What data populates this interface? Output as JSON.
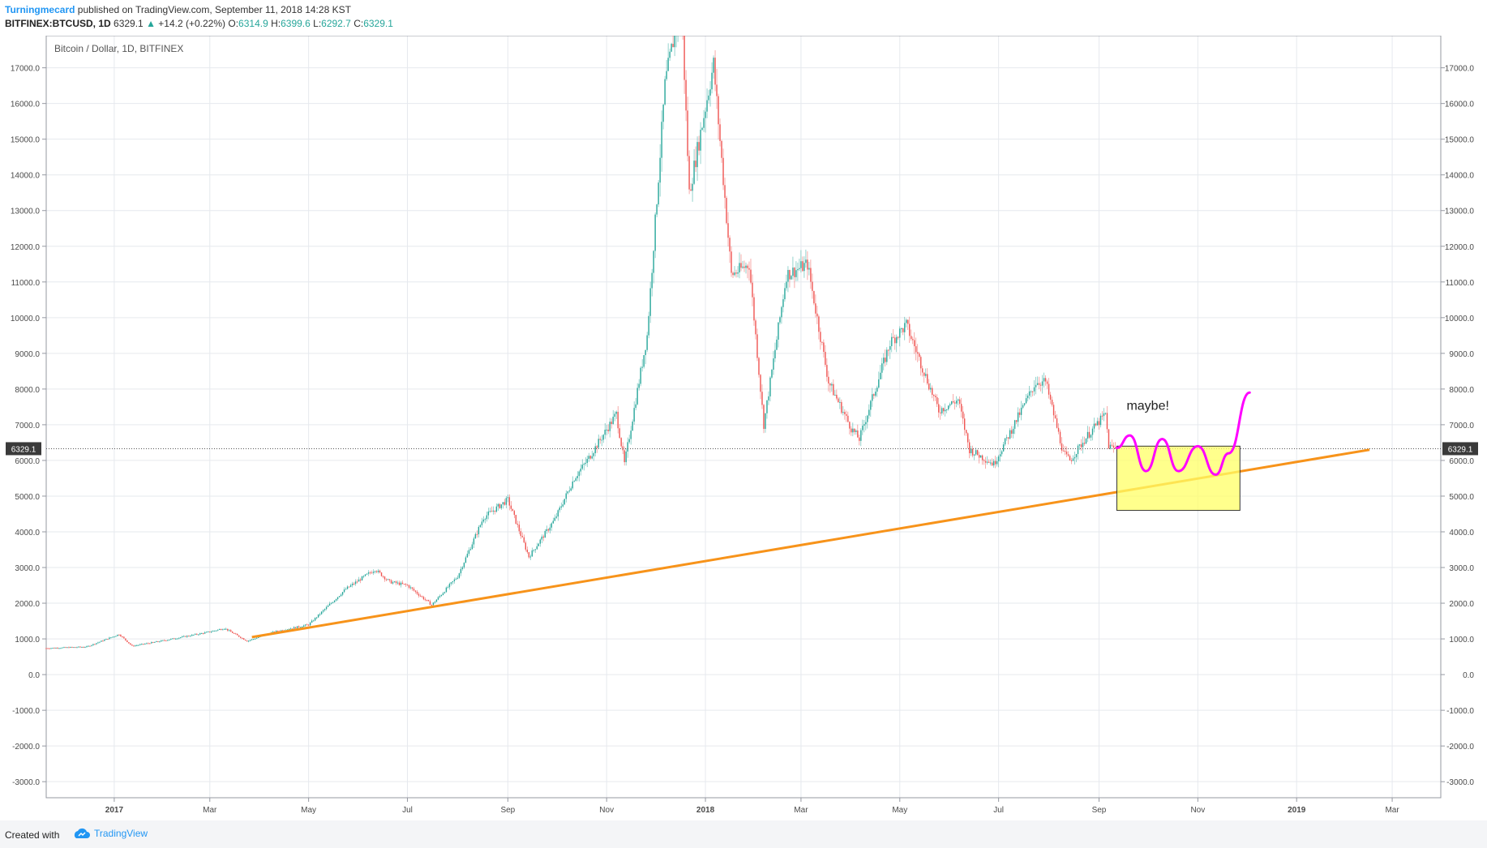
{
  "header": {
    "author": "Turningmecard",
    "published": " published on TradingView.com, September 11, 2018 14:28 KST",
    "symbol": "BITFINEX:BTCUSD, 1D",
    "last": "6329.1",
    "change": "+14.2 (+0.22%)",
    "o_label": "O:",
    "o_value": "6314.9",
    "h_label": "H:",
    "h_value": "6399.6",
    "l_label": "L:",
    "l_value": "6292.7",
    "c_label": "C:",
    "c_value": "6329.1"
  },
  "footer": {
    "created": "Created with",
    "brand": "TradingView"
  },
  "colors": {
    "up": "#26a69a",
    "down": "#ef5350",
    "trendline": "#f7931a",
    "box_fill": "#ffff66",
    "projection": "#ff00ff",
    "grid": "#e6e9ee"
  },
  "chart_data": {
    "type": "candlestick",
    "title": "Bitcoin / Dollar, 1D, BITFINEX",
    "ylim": [
      -3450,
      17900
    ],
    "y_ticks": [
      -3000,
      -2000,
      -1000,
      0,
      1000,
      2000,
      3000,
      4000,
      5000,
      6000,
      7000,
      8000,
      9000,
      10000,
      11000,
      12000,
      13000,
      14000,
      15000,
      16000,
      17000
    ],
    "y_tick_labels": [
      "-3000.0",
      "-2000.0",
      "-1000.0",
      "0.0",
      "1000.0",
      "2000.0",
      "3000.0",
      "4000.0",
      "5000.0",
      "6000.0",
      "7000.0",
      "8000.0",
      "9000.0",
      "10000.0",
      "11000.0",
      "12000.0",
      "13000.0",
      "14000.0",
      "15000.0",
      "16000.0",
      "17000.0"
    ],
    "x_range": [
      "2016-11-20",
      "2019-03-31"
    ],
    "x_ticks": [
      {
        "date": "2017-01-01",
        "label": "2017",
        "bold": true
      },
      {
        "date": "2017-03-01",
        "label": "Mar"
      },
      {
        "date": "2017-05-01",
        "label": "May"
      },
      {
        "date": "2017-07-01",
        "label": "Jul"
      },
      {
        "date": "2017-09-01",
        "label": "Sep"
      },
      {
        "date": "2017-11-01",
        "label": "Nov"
      },
      {
        "date": "2018-01-01",
        "label": "2018",
        "bold": true
      },
      {
        "date": "2018-03-01",
        "label": "Mar"
      },
      {
        "date": "2018-05-01",
        "label": "May"
      },
      {
        "date": "2018-07-01",
        "label": "Jul"
      },
      {
        "date": "2018-09-01",
        "label": "Sep"
      },
      {
        "date": "2018-11-01",
        "label": "Nov"
      },
      {
        "date": "2019-01-01",
        "label": "2019",
        "bold": true
      },
      {
        "date": "2019-03-01",
        "label": "Mar"
      }
    ],
    "price_anchors": [
      [
        "2016-11-20",
        740
      ],
      [
        "2016-12-15",
        780
      ],
      [
        "2017-01-04",
        1130
      ],
      [
        "2017-01-12",
        800
      ],
      [
        "2017-02-01",
        960
      ],
      [
        "2017-03-01",
        1200
      ],
      [
        "2017-03-10",
        1300
      ],
      [
        "2017-03-24",
        940
      ],
      [
        "2017-04-10",
        1200
      ],
      [
        "2017-05-01",
        1400
      ],
      [
        "2017-05-24",
        2400
      ],
      [
        "2017-06-11",
        2950
      ],
      [
        "2017-06-20",
        2600
      ],
      [
        "2017-07-01",
        2500
      ],
      [
        "2017-07-16",
        1950
      ],
      [
        "2017-08-01",
        2750
      ],
      [
        "2017-08-17",
        4400
      ],
      [
        "2017-09-01",
        4900
      ],
      [
        "2017-09-14",
        3300
      ],
      [
        "2017-09-30",
        4350
      ],
      [
        "2017-10-12",
        5500
      ],
      [
        "2017-10-20",
        6000
      ],
      [
        "2017-11-07",
        7300
      ],
      [
        "2017-11-12",
        5900
      ],
      [
        "2017-11-26",
        9500
      ],
      [
        "2017-12-07",
        16500
      ],
      [
        "2017-12-17",
        19000
      ],
      [
        "2017-12-22",
        13500
      ],
      [
        "2018-01-06",
        17100
      ],
      [
        "2018-01-17",
        11200
      ],
      [
        "2018-01-28",
        11500
      ],
      [
        "2018-02-06",
        7000
      ],
      [
        "2018-02-20",
        11200
      ],
      [
        "2018-03-05",
        11500
      ],
      [
        "2018-03-18",
        8200
      ],
      [
        "2018-04-01",
        6900
      ],
      [
        "2018-04-06",
        6600
      ],
      [
        "2018-04-25",
        9300
      ],
      [
        "2018-05-05",
        9800
      ],
      [
        "2018-05-25",
        7400
      ],
      [
        "2018-06-06",
        7700
      ],
      [
        "2018-06-13",
        6300
      ],
      [
        "2018-06-28",
        5900
      ],
      [
        "2018-07-06",
        6600
      ],
      [
        "2018-07-24",
        8200
      ],
      [
        "2018-07-30",
        8200
      ],
      [
        "2018-08-10",
        6200
      ],
      [
        "2018-08-14",
        6000
      ],
      [
        "2018-08-25",
        6700
      ],
      [
        "2018-09-05",
        7300
      ],
      [
        "2018-09-07",
        6400
      ],
      [
        "2018-09-11",
        6329
      ]
    ],
    "last_price": 6329.1,
    "last_price_label": "6329.1",
    "annotations": {
      "trendline": {
        "from": [
          "2017-03-27",
          1050
        ],
        "to": [
          "2019-02-15",
          6300
        ]
      },
      "box": {
        "from": [
          "2018-09-12",
          6400
        ],
        "to": [
          "2018-11-27",
          4600
        ]
      },
      "projection": [
        [
          "2018-09-12",
          6350
        ],
        [
          "2018-09-20",
          6700
        ],
        [
          "2018-09-30",
          5700
        ],
        [
          "2018-10-10",
          6600
        ],
        [
          "2018-10-20",
          5700
        ],
        [
          "2018-11-01",
          6400
        ],
        [
          "2018-11-12",
          5600
        ],
        [
          "2018-11-20",
          6200
        ],
        [
          "2018-12-03",
          7900
        ]
      ],
      "text": "maybe!",
      "text_anchor": [
        "2018-09-18",
        7420
      ]
    }
  }
}
